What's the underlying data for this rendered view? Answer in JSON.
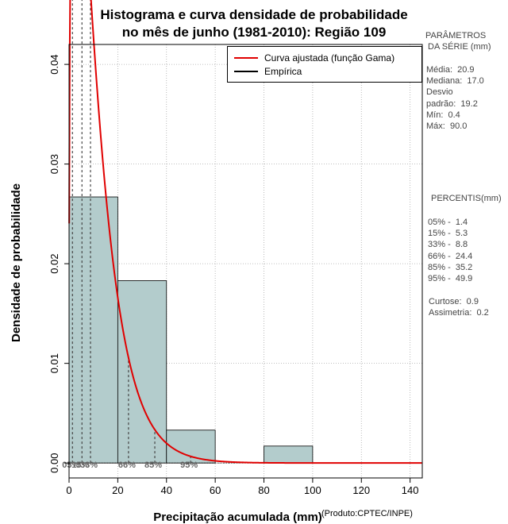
{
  "title_line1": "Histograma e curva densidade de probabilidade",
  "title_line2": "no mês de junho (1981-2010): Região 109",
  "product": "(Produto:CPTEC/INPE)",
  "legend": {
    "fit_label": "Curva ajustada (função Gama)",
    "empirical_label": "Empírica"
  },
  "colors": {
    "bar": "#b3cccc",
    "curve": "#e00000",
    "grid": "#aaaaaa"
  },
  "params": {
    "header1": "PARÂMETROS",
    "header2": " DA SÉRIE (mm)",
    "media": "Média:  20.9",
    "mediana": "Mediana:  17.0",
    "desvio1": "Desvio",
    "desvio2": "padrão:  19.2",
    "min": "Mín:  0.4",
    "max": "Máx:  90.0"
  },
  "percentis": {
    "header": "PERCENTIS(mm)",
    "p05": "05% -  1.4",
    "p15": "15% -  5.3",
    "p33": "33% -  8.8",
    "p66": "66% -  24.4",
    "p85": "85% -  35.2",
    "p95": "95% -  49.9",
    "curtose": "Curtose:  0.9",
    "assimetria": "Assimetria:  0.2"
  },
  "chart_data": {
    "type": "bar",
    "title": "Histograma e curva densidade de probabilidade no mês de junho (1981-2010): Região 109",
    "xlabel": "Precipitação acumulada (mm)",
    "ylabel": "Densidade de probabilidade",
    "xlim": [
      0,
      145
    ],
    "ylim": [
      -0.0015,
      0.042
    ],
    "x_ticks": [
      0,
      20,
      40,
      60,
      80,
      100,
      120,
      140
    ],
    "y_ticks": [
      0.0,
      0.01,
      0.02,
      0.03,
      0.04
    ],
    "y_tick_labels": [
      "0.00",
      "0.01",
      "0.02",
      "0.03",
      "0.04"
    ],
    "grid": true,
    "bins": [
      {
        "from": 0,
        "to": 20,
        "value": 0.0267
      },
      {
        "from": 20,
        "to": 40,
        "value": 0.0183
      },
      {
        "from": 40,
        "to": 60,
        "value": 0.0033
      },
      {
        "from": 60,
        "to": 80,
        "value": 0.0
      },
      {
        "from": 80,
        "to": 100,
        "value": 0.0017
      }
    ],
    "gamma_fit": {
      "shape": 1.33,
      "scale": 8.5
    },
    "percentile_lines": [
      {
        "label": "05%",
        "x": 1.4
      },
      {
        "label": "15%",
        "x": 5.3
      },
      {
        "label": "33%",
        "x": 8.8
      },
      {
        "label": "66%",
        "x": 24.4
      },
      {
        "label": "85%",
        "x": 35.2
      },
      {
        "label": "95%",
        "x": 49.9
      }
    ]
  }
}
